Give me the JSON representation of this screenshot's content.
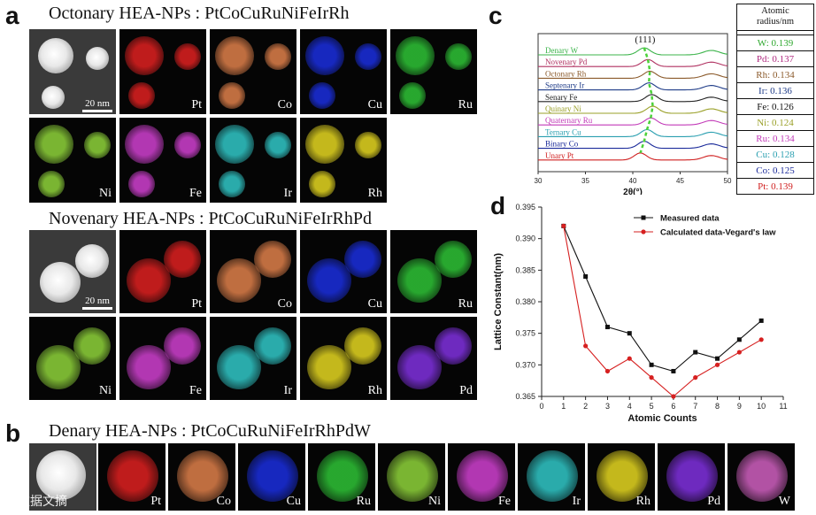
{
  "panel_a": {
    "letter": "a",
    "octonary_title": "Octonary HEA-NPs : PtCoCuRuNiFeIrRh",
    "octonary_scale": "20 nm",
    "octonary_labels": [
      "Pt",
      "Co",
      "Cu",
      "Ru",
      "Ni",
      "Fe",
      "Ir",
      "Rh"
    ],
    "novenary_title": "Novenary HEA-NPs : PtCoCuRuNiFeIrRhPd",
    "novenary_scale": "20 nm",
    "novenary_labels": [
      "Pt",
      "Co",
      "Cu",
      "Ru",
      "Ni",
      "Fe",
      "Ir",
      "Rh",
      "Pd"
    ]
  },
  "panel_b": {
    "letter": "b",
    "title": "Denary HEA-NPs : PtCoCuRuNiFeIrRhPdW",
    "labels": [
      "Pt",
      "Co",
      "Cu",
      "Ru",
      "Ni",
      "Fe",
      "Ir",
      "Rh",
      "Pd",
      "W"
    ]
  },
  "watermark": "大数据文摘",
  "element_colors": {
    "Pt": "#e02020",
    "Co": "#e0804a",
    "Cu": "#1a2ee0",
    "Ru": "#2ec436",
    "Ni": "#8fd43a",
    "Fe": "#d040d0",
    "Ir": "#30c8c8",
    "Rh": "#e6d820",
    "Pd": "#8030e0",
    "W": "#d060c0"
  },
  "panel_c": {
    "letter": "c",
    "peak_label": "(111)",
    "xlabel": "2θ(°)",
    "x_ticks": [
      "30",
      "35",
      "40",
      "45",
      "50"
    ],
    "series": [
      {
        "name": "Denary  W",
        "color": "#3cb44b"
      },
      {
        "name": "Novenary  Pd",
        "color": "#b03060"
      },
      {
        "name": "Octonary  Rh",
        "color": "#8b5a2b"
      },
      {
        "name": "Septenary  Ir",
        "color": "#1f3c88"
      },
      {
        "name": "Senary  Fe",
        "color": "#222222"
      },
      {
        "name": "Quinary  Ni",
        "color": "#9aa028"
      },
      {
        "name": "Quaternary  Ru",
        "color": "#c23ab8"
      },
      {
        "name": "Ternary  Cu",
        "color": "#2a9fb0"
      },
      {
        "name": "Binary  Co",
        "color": "#1a2a9a"
      },
      {
        "name": "Unary  Pt",
        "color": "#d02020"
      }
    ],
    "radius_header": [
      "Atomic",
      "radius/nm"
    ],
    "radii": [
      {
        "text": "W: 0.139",
        "color": "#2ea82e"
      },
      {
        "text": "Pd: 0.137",
        "color": "#b02a80"
      },
      {
        "text": "Rh: 0.134",
        "color": "#8b5a2b"
      },
      {
        "text": "Ir: 0.136",
        "color": "#1f3c88"
      },
      {
        "text": "Fe: 0.126",
        "color": "#111111"
      },
      {
        "text": "Ni: 0.124",
        "color": "#9aa028"
      },
      {
        "text": "Ru: 0.134",
        "color": "#c23ab8"
      },
      {
        "text": "Cu: 0.128",
        "color": "#2a9fb0"
      },
      {
        "text": "Co: 0.125",
        "color": "#1a2a9a"
      },
      {
        "text": "Pt: 0.139",
        "color": "#d02020"
      }
    ]
  },
  "chart_data": {
    "type": "line",
    "title": "",
    "xlabel": "Atomic Counts",
    "ylabel": "Lattice Constant(nm)",
    "xlim": [
      0,
      11
    ],
    "ylim": [
      0.365,
      0.395
    ],
    "x_ticks": [
      0,
      1,
      2,
      3,
      4,
      5,
      6,
      7,
      8,
      9,
      10,
      11
    ],
    "y_ticks": [
      0.365,
      0.37,
      0.375,
      0.38,
      0.385,
      0.39,
      0.395
    ],
    "x": [
      1,
      2,
      3,
      4,
      5,
      6,
      7,
      8,
      9,
      10
    ],
    "series": [
      {
        "name": "Measured data",
        "color": "#111111",
        "marker": "square",
        "values": [
          0.392,
          0.384,
          0.376,
          0.375,
          0.37,
          0.369,
          0.372,
          0.371,
          0.374,
          0.377
        ]
      },
      {
        "name": "Calculated data-Vegard's law",
        "color": "#d62020",
        "marker": "circle",
        "values": [
          0.392,
          0.373,
          0.369,
          0.371,
          0.368,
          0.365,
          0.368,
          0.37,
          0.372,
          0.374
        ]
      }
    ],
    "legend_position": "top-right",
    "panel_letter": "d"
  }
}
